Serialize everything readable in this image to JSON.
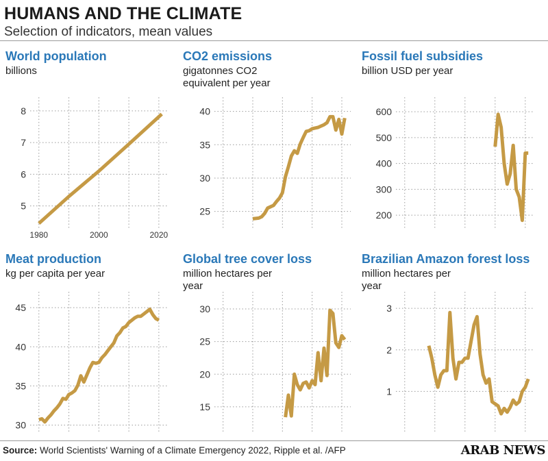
{
  "header": {
    "title": "HUMANS AND THE CLIMATE",
    "subtitle": "Selection of indicators, mean values"
  },
  "footer": {
    "source_label": "Source:",
    "source_text": "World Scientists' Warning of a Climate Emergency 2022, Ripple et al. /AFP",
    "brand": "ARAB NEWS"
  },
  "colors": {
    "line": "#C59A45",
    "title": "#2A78B8",
    "grid": "#9a9a9a"
  },
  "chart_data": [
    {
      "type": "line",
      "title": "World population",
      "ylabel": "billions",
      "ylim": [
        4.3,
        8.3
      ],
      "yticks": [
        5,
        6,
        7,
        8
      ],
      "xlim": [
        1978,
        2023
      ],
      "xticks": [
        1980,
        2000,
        2020
      ],
      "x": [
        1980,
        1990,
        2000,
        2010,
        2021
      ],
      "values": [
        4.45,
        5.3,
        6.1,
        6.95,
        7.9
      ]
    },
    {
      "type": "line",
      "title": "CO2 emissions",
      "ylabel": "gigatonnes CO2 equivalent per year",
      "ylim": [
        22.5,
        41.5
      ],
      "yticks": [
        25,
        30,
        35,
        40
      ],
      "xlim": [
        1978,
        2023
      ],
      "xticks": [],
      "x": [
        1990,
        1992,
        1993,
        1994,
        1995,
        1996,
        1997,
        1998,
        1999,
        2000,
        2001,
        2002,
        2003,
        2004,
        2005,
        2006,
        2007,
        2008,
        2009,
        2010,
        2011,
        2012,
        2013,
        2014,
        2015,
        2016,
        2017,
        2018,
        2019,
        2020,
        2021
      ],
      "values": [
        23.9,
        24.0,
        24.2,
        24.7,
        25.5,
        25.7,
        25.9,
        26.5,
        27.0,
        27.8,
        30.2,
        31.7,
        33.3,
        34.1,
        33.7,
        35.1,
        36.1,
        37.0,
        37.1,
        37.4,
        37.5,
        37.6,
        37.8,
        38.0,
        38.3,
        39.2,
        39.2,
        37.2,
        38.8,
        36.6,
        39.0
      ]
    },
    {
      "type": "line",
      "title": "Fossil fuel subsidies",
      "ylabel": "billion USD per year",
      "ylim": [
        150,
        640
      ],
      "yticks": [
        200,
        300,
        400,
        500,
        600
      ],
      "xlim": [
        1978,
        2023
      ],
      "xticks": [],
      "x": [
        2010,
        2011,
        2012,
        2013,
        2014,
        2015,
        2016,
        2017,
        2018,
        2019,
        2020,
        2021
      ],
      "values": [
        465,
        590,
        540,
        400,
        320,
        360,
        470,
        300,
        270,
        180,
        440,
        440
      ]
    },
    {
      "type": "line",
      "title": "Meat production",
      "ylabel": "kg per capita per year",
      "ylim": [
        29.0,
        46.5
      ],
      "yticks": [
        30,
        35,
        40,
        45
      ],
      "xlim": [
        1978,
        2023
      ],
      "xticks": [],
      "x": [
        1980,
        1981,
        1982,
        1983,
        1984,
        1985,
        1986,
        1987,
        1988,
        1989,
        1990,
        1991,
        1992,
        1993,
        1994,
        1995,
        1996,
        1997,
        1998,
        1999,
        2000,
        2001,
        2002,
        2003,
        2004,
        2005,
        2006,
        2007,
        2008,
        2009,
        2010,
        2011,
        2012,
        2013,
        2014,
        2015,
        2016,
        2017,
        2018,
        2019,
        2020
      ],
      "values": [
        30.7,
        30.8,
        30.4,
        30.9,
        31.3,
        31.8,
        32.2,
        32.7,
        33.4,
        33.3,
        33.9,
        34.1,
        34.4,
        35.1,
        36.3,
        35.5,
        36.4,
        37.3,
        38.0,
        37.9,
        38.0,
        38.6,
        39.0,
        39.5,
        40.0,
        40.5,
        41.4,
        41.8,
        42.4,
        42.6,
        43.1,
        43.4,
        43.7,
        43.9,
        43.9,
        44.2,
        44.5,
        44.8,
        44.1,
        43.6,
        43.4
      ]
    },
    {
      "type": "line",
      "title": "Global tree cover loss",
      "ylabel": "million hectares per year",
      "ylim": [
        11.0,
        32.0
      ],
      "yticks": [
        15,
        20,
        25,
        30
      ],
      "xlim": [
        1978,
        2023
      ],
      "xticks": [],
      "x": [
        2001,
        2002,
        2003,
        2004,
        2005,
        2006,
        2007,
        2008,
        2009,
        2010,
        2011,
        2012,
        2013,
        2014,
        2015,
        2016,
        2017,
        2018,
        2019,
        2020,
        2021
      ],
      "values": [
        13.4,
        16.8,
        13.6,
        20.0,
        18.4,
        17.6,
        18.6,
        18.8,
        17.9,
        19.0,
        18.4,
        23.3,
        19.0,
        24.0,
        19.8,
        29.8,
        29.3,
        24.8,
        24.1,
        25.9,
        25.3
      ]
    },
    {
      "type": "line",
      "title": "Brazilian Amazon forest loss",
      "ylabel": "million hectares per year",
      "ylim": [
        0.0,
        3.3
      ],
      "yticks": [
        1,
        2,
        3
      ],
      "xlim": [
        1978,
        2023
      ],
      "xticks": [],
      "x": [
        1988,
        1989,
        1990,
        1991,
        1992,
        1993,
        1994,
        1995,
        1996,
        1997,
        1998,
        1999,
        2000,
        2001,
        2002,
        2003,
        2004,
        2005,
        2006,
        2007,
        2008,
        2009,
        2010,
        2011,
        2012,
        2013,
        2014,
        2015,
        2016,
        2017,
        2018,
        2019,
        2020,
        2021
      ],
      "values": [
        2.1,
        1.8,
        1.4,
        1.1,
        1.4,
        1.5,
        1.5,
        2.9,
        1.8,
        1.3,
        1.7,
        1.7,
        1.8,
        1.8,
        2.2,
        2.6,
        2.8,
        1.9,
        1.4,
        1.2,
        1.3,
        0.75,
        0.7,
        0.65,
        0.46,
        0.59,
        0.5,
        0.62,
        0.79,
        0.69,
        0.75,
        1.0,
        1.1,
        1.3
      ]
    }
  ]
}
